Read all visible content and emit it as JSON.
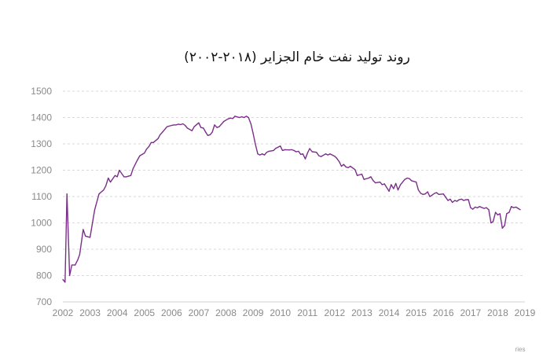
{
  "colors": {
    "series": "#7a2e8a",
    "grid": "#d9d9d9",
    "tick_text": "#8a8a8a"
  },
  "credit": "ries",
  "chart_data": {
    "type": "line",
    "title": "روند تولید نفت خام الجزایر (۲۰۱۸-۲۰۰۲)",
    "xlabel": "",
    "ylabel": "",
    "xlim": [
      2002,
      2019
    ],
    "ylim": [
      700,
      1500
    ],
    "yticks": [
      700,
      800,
      900,
      1000,
      1100,
      1200,
      1300,
      1400,
      1500
    ],
    "xticks": [
      2002,
      2003,
      2004,
      2005,
      2006,
      2007,
      2008,
      2009,
      2010,
      2011,
      2012,
      2013,
      2014,
      2015,
      2016,
      2017,
      2018,
      2019
    ],
    "grid": true,
    "series": [
      {
        "x": [
          2002.0,
          2002.08,
          2002.15,
          2002.25,
          2002.33,
          2002.45,
          2002.55,
          2002.62,
          2002.75,
          2002.83,
          2003.0,
          2003.17,
          2003.33,
          2003.5,
          2003.58,
          2003.67,
          2003.75,
          2003.92,
          2004.0,
          2004.08,
          2004.25,
          2004.33,
          2004.5,
          2004.58,
          2004.75,
          2004.83,
          2004.92,
          2005.0,
          2005.08,
          2005.17,
          2005.25,
          2005.33,
          2005.5,
          2005.58,
          2005.67,
          2005.83,
          2006.0,
          2006.08,
          2006.17,
          2006.25,
          2006.33,
          2006.42,
          2006.5,
          2006.58,
          2006.75,
          2006.83,
          2007.0,
          2007.08,
          2007.17,
          2007.25,
          2007.33,
          2007.42,
          2007.5,
          2007.58,
          2007.67,
          2007.75,
          2007.92,
          2008.0,
          2008.08,
          2008.17,
          2008.25,
          2008.33,
          2008.42,
          2008.5,
          2008.58,
          2008.67,
          2008.75,
          2008.83,
          2008.92,
          2009.0,
          2009.08,
          2009.17,
          2009.25,
          2009.33,
          2009.42,
          2009.5,
          2009.58,
          2009.75,
          2009.83,
          2010.0,
          2010.08,
          2010.17,
          2010.33,
          2010.42,
          2010.5,
          2010.58,
          2010.67,
          2010.75,
          2010.83,
          2010.92,
          2011.0,
          2011.08,
          2011.17,
          2011.33,
          2011.42,
          2011.5,
          2011.67,
          2011.75,
          2011.83,
          2012.0,
          2012.08,
          2012.17,
          2012.25,
          2012.33,
          2012.42,
          2012.5,
          2012.58,
          2012.67,
          2012.75,
          2012.83,
          2013.0,
          2013.08,
          2013.25,
          2013.33,
          2013.42,
          2013.5,
          2013.67,
          2013.75,
          2013.83,
          2014.0,
          2014.08,
          2014.17,
          2014.25,
          2014.33,
          2014.42,
          2014.5,
          2014.58,
          2014.67,
          2014.75,
          2014.83,
          2015.0,
          2015.08,
          2015.17,
          2015.25,
          2015.33,
          2015.42,
          2015.5,
          2015.58,
          2015.67,
          2015.75,
          2015.83,
          2016.0,
          2016.08,
          2016.17,
          2016.25,
          2016.33,
          2016.42,
          2016.5,
          2016.58,
          2016.67,
          2016.75,
          2016.83,
          2016.92,
          2017.0,
          2017.08,
          2017.17,
          2017.25,
          2017.33,
          2017.5,
          2017.58,
          2017.67,
          2017.75,
          2017.83,
          2017.92,
          2018.0,
          2018.08,
          2018.17,
          2018.25,
          2018.33,
          2018.42,
          2018.5,
          2018.58,
          2018.67,
          2018.75,
          2018.83
        ],
        "values": [
          785,
          775,
          1110,
          800,
          840,
          840,
          860,
          880,
          975,
          950,
          945,
          1050,
          1110,
          1125,
          1140,
          1170,
          1155,
          1180,
          1175,
          1200,
          1175,
          1175,
          1180,
          1205,
          1240,
          1255,
          1260,
          1265,
          1280,
          1290,
          1305,
          1305,
          1320,
          1335,
          1345,
          1365,
          1370,
          1372,
          1372,
          1375,
          1373,
          1376,
          1370,
          1360,
          1350,
          1365,
          1380,
          1362,
          1360,
          1345,
          1332,
          1335,
          1345,
          1372,
          1362,
          1365,
          1385,
          1390,
          1395,
          1398,
          1396,
          1405,
          1402,
          1400,
          1403,
          1400,
          1405,
          1400,
          1375,
          1340,
          1300,
          1262,
          1258,
          1262,
          1258,
          1268,
          1272,
          1275,
          1283,
          1292,
          1275,
          1278,
          1277,
          1278,
          1275,
          1270,
          1272,
          1260,
          1262,
          1243,
          1265,
          1282,
          1270,
          1268,
          1255,
          1252,
          1262,
          1258,
          1262,
          1253,
          1245,
          1232,
          1215,
          1222,
          1212,
          1210,
          1215,
          1208,
          1202,
          1180,
          1185,
          1165,
          1170,
          1175,
          1160,
          1152,
          1155,
          1145,
          1148,
          1120,
          1145,
          1130,
          1150,
          1125,
          1145,
          1155,
          1165,
          1170,
          1168,
          1160,
          1155,
          1125,
          1112,
          1108,
          1110,
          1118,
          1100,
          1105,
          1112,
          1115,
          1108,
          1110,
          1098,
          1085,
          1090,
          1078,
          1085,
          1082,
          1088,
          1090,
          1085,
          1088,
          1088,
          1058,
          1052,
          1060,
          1057,
          1062,
          1055,
          1058,
          1050,
          1000,
          1005,
          1040,
          1030,
          1035,
          980,
          990,
          1035,
          1040,
          1062,
          1058,
          1060,
          1055,
          1050
        ]
      }
    ]
  }
}
